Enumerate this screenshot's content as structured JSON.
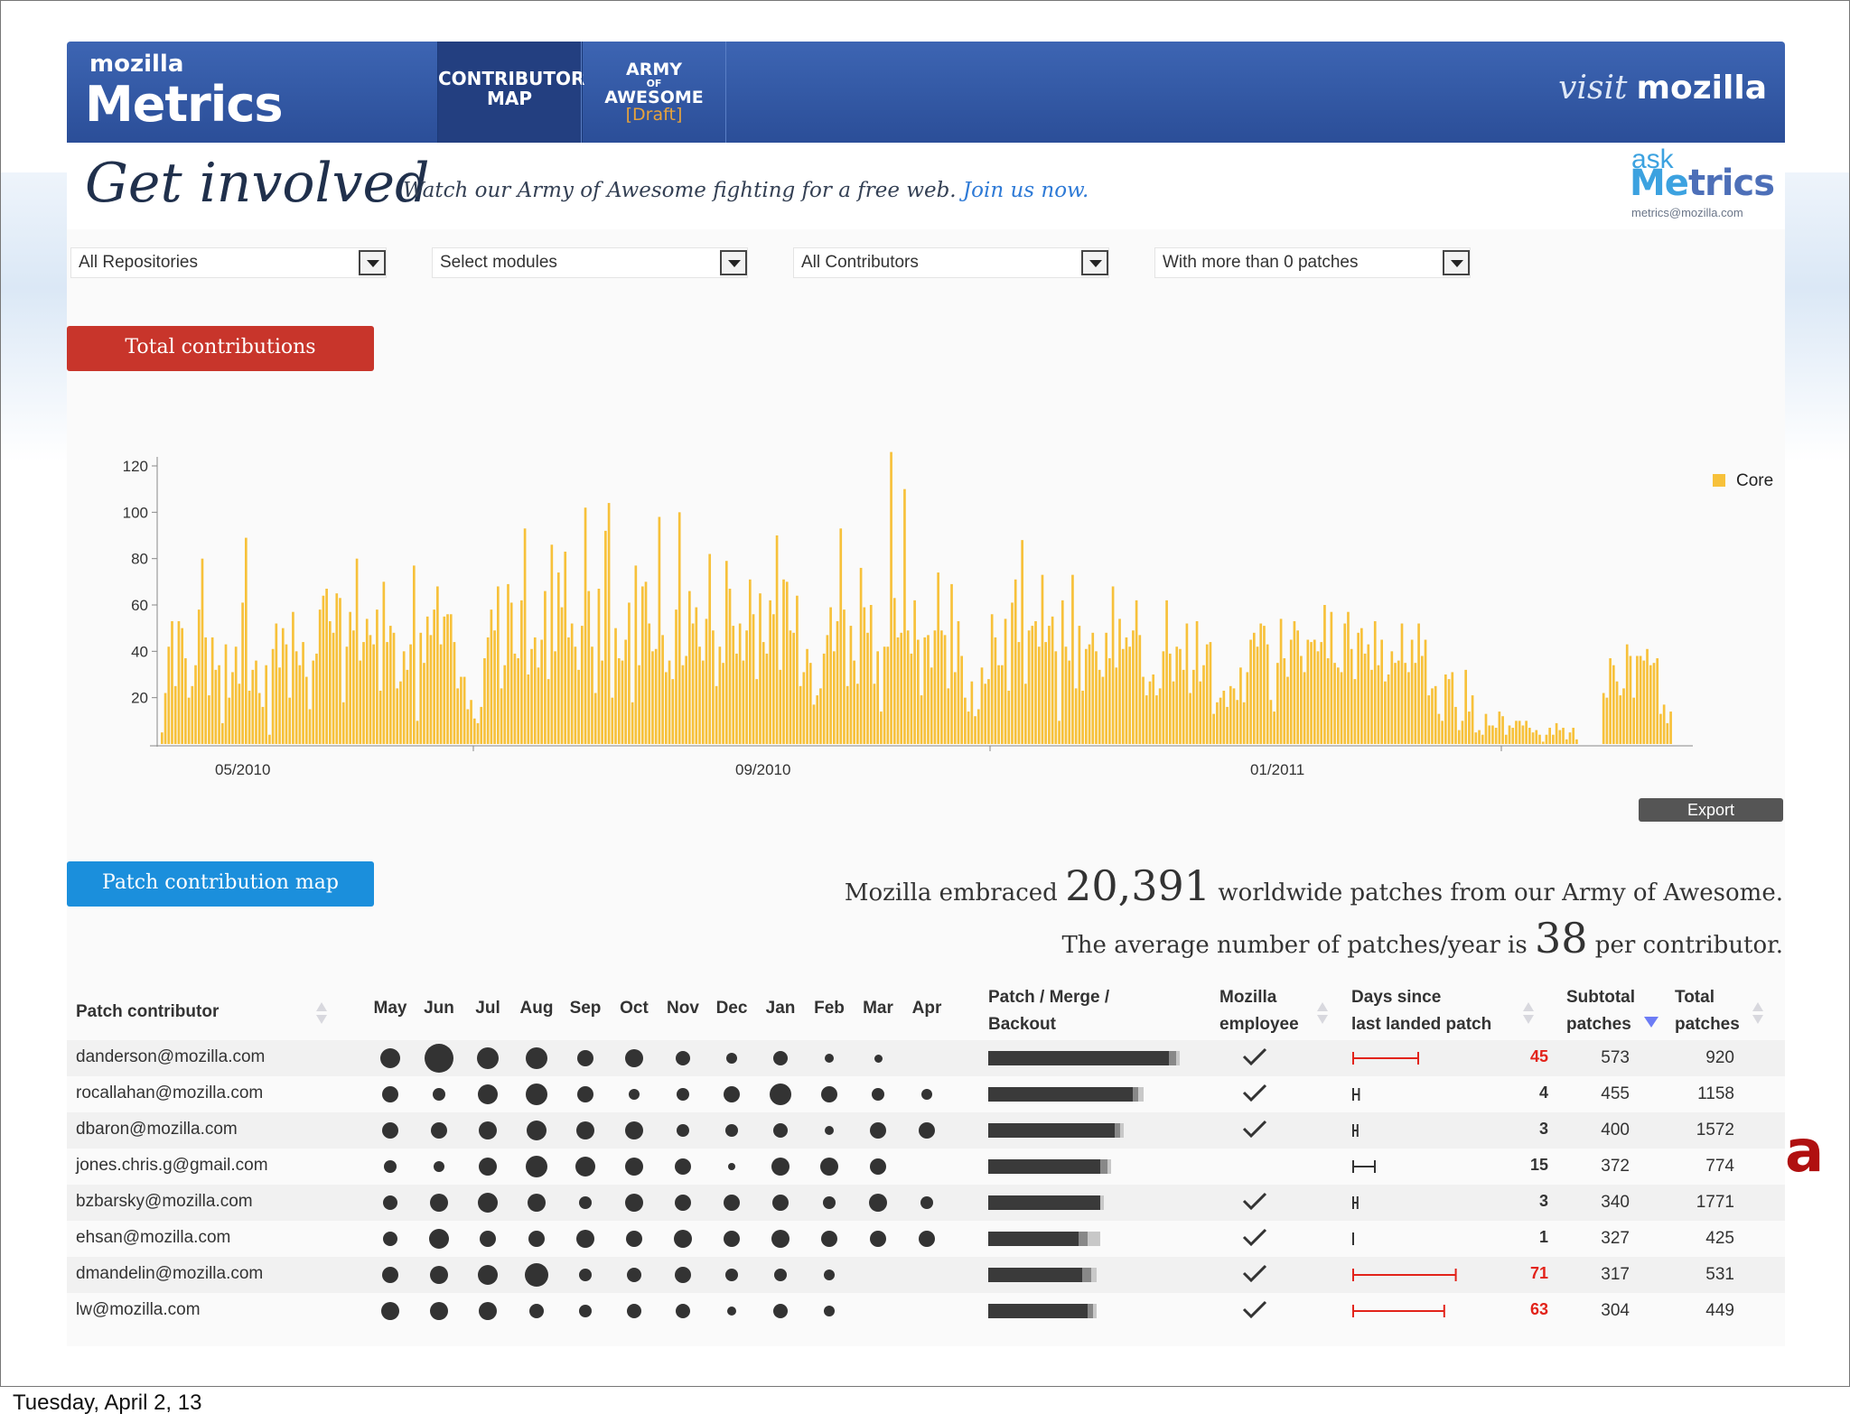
{
  "header": {
    "logo_top": "mozilla",
    "logo_main": "Metrics",
    "nav": [
      {
        "line1": "CONTRIBUTOR",
        "line2": "MAP"
      },
      {
        "line1": "ARMY",
        "line2": "OF",
        "line3": "AWESOME",
        "line4": "[Draft]"
      }
    ],
    "visit_italic": "visit",
    "visit_brand": "mozilla"
  },
  "intro": {
    "title": "Get involved",
    "subtitle": "Watch our Army of Awesome fighting for a free web.",
    "join": "Join us now.",
    "ask_top": "ask",
    "ask_main_a": "Me",
    "ask_main_b": "trics",
    "ask_email": "metrics@mozilla.com"
  },
  "filters": [
    {
      "value": "All Repositories"
    },
    {
      "value": "Select modules"
    },
    {
      "value": "All Contributors"
    },
    {
      "value": "With more than 0 patches"
    }
  ],
  "tabs": {
    "total": "Total contributions",
    "patch": "Patch contribution map"
  },
  "export_label": "Export",
  "chart_data": {
    "type": "bar",
    "series": [
      {
        "name": "Core",
        "color": "#f7c13a"
      }
    ],
    "y_ticks": [
      "20",
      "40",
      "60",
      "80",
      "100",
      "120"
    ],
    "ylim": [
      0,
      130
    ],
    "x_ticks": [
      "05/2010",
      "09/2010",
      "01/2011"
    ],
    "values": [
      5,
      22,
      42,
      53,
      25,
      53,
      50,
      37,
      20,
      25,
      34,
      58,
      80,
      46,
      21,
      46,
      32,
      34,
      9,
      43,
      20,
      31,
      42,
      26,
      61,
      89,
      23,
      32,
      36,
      22,
      16,
      34,
      4,
      41,
      52,
      33,
      50,
      43,
      20,
      57,
      40,
      34,
      44,
      29,
      15,
      36,
      39,
      58,
      64,
      67,
      53,
      48,
      65,
      63,
      18,
      42,
      57,
      49,
      80,
      36,
      44,
      54,
      47,
      43,
      58,
      23,
      70,
      44,
      51,
      48,
      24,
      27,
      40,
      32,
      43,
      77,
      10,
      48,
      35,
      55,
      47,
      58,
      68,
      43,
      55,
      56,
      56,
      44,
      24,
      29,
      29,
      15,
      19,
      11,
      9,
      16,
      37,
      46,
      58,
      49,
      68,
      24,
      34,
      69,
      61,
      39,
      37,
      62,
      93,
      30,
      41,
      46,
      33,
      45,
      66,
      28,
      86,
      40,
      74,
      59,
      83,
      46,
      52,
      42,
      32,
      51,
      102,
      66,
      42,
      22,
      67,
      36,
      92,
      104,
      20,
      50,
      37,
      36,
      45,
      61,
      18,
      77,
      34,
      68,
      70,
      52,
      40,
      41,
      98,
      47,
      31,
      36,
      28,
      58,
      100,
      34,
      38,
      66,
      52,
      59,
      42,
      36,
      54,
      82,
      49,
      25,
      42,
      35,
      79,
      67,
      51,
      39,
      52,
      36,
      49,
      71,
      56,
      28,
      65,
      44,
      39,
      62,
      56,
      90,
      32,
      71,
      70,
      49,
      48,
      64,
      25,
      31,
      41,
      35,
      17,
      21,
      24,
      39,
      47,
      59,
      40,
      53,
      93,
      58,
      25,
      51,
      36,
      26,
      76,
      59,
      48,
      60,
      26,
      40,
      14,
      42,
      42,
      126,
      63,
      46,
      48,
      110,
      49,
      39,
      62,
      45,
      21,
      46,
      47,
      33,
      49,
      74,
      49,
      47,
      24,
      69,
      31,
      53,
      38,
      20,
      14,
      27,
      12,
      15,
      33,
      26,
      28,
      56,
      46,
      34,
      34,
      54,
      23,
      61,
      71,
      44,
      88,
      26,
      49,
      51,
      53,
      42,
      73,
      44,
      51,
      55,
      40,
      10,
      62,
      42,
      36,
      73,
      24,
      51,
      23,
      41,
      43,
      48,
      40,
      32,
      29,
      48,
      37,
      68,
      33,
      54,
      41,
      46,
      42,
      49,
      62,
      47,
      29,
      21,
      27,
      30,
      21,
      24,
      40,
      62,
      39,
      27,
      42,
      41,
      32,
      52,
      22,
      32,
      53,
      27,
      34,
      43,
      44,
      13,
      18,
      20,
      23,
      16,
      25,
      24,
      19,
      33,
      18,
      31,
      45,
      48,
      42,
      52,
      51,
      43,
      19,
      14,
      35,
      54,
      37,
      29,
      45,
      53,
      49,
      38,
      31,
      45,
      44,
      45,
      40,
      44,
      60,
      37,
      57,
      35,
      33,
      31,
      52,
      57,
      41,
      28,
      48,
      50,
      39,
      43,
      32,
      53,
      34,
      45,
      27,
      30,
      40,
      35,
      36,
      52,
      35,
      31,
      45,
      35,
      52,
      38,
      45,
      21,
      24,
      25,
      13,
      10,
      30,
      28,
      31,
      16,
      6,
      10,
      32,
      14,
      21,
      5,
      6,
      4,
      13,
      8,
      8,
      7,
      14,
      12,
      4,
      8,
      7,
      10,
      10,
      8,
      10,
      7,
      5,
      6,
      4,
      1,
      4,
      7,
      4,
      9,
      6,
      7,
      2,
      5,
      7,
      2,
      0,
      0,
      0,
      0,
      0,
      0,
      0,
      22,
      20,
      37,
      34,
      27,
      21,
      24,
      43,
      38,
      20,
      38,
      38,
      36,
      41,
      34,
      35,
      37,
      13,
      17,
      9,
      14,
      0,
      0,
      0,
      0,
      0,
      0,
      0
    ]
  },
  "summary": {
    "line1_a": "Mozilla embraced",
    "line1_num": "20,391",
    "line1_b": "worldwide patches from our Army of Awesome.",
    "line2_a": "The average number of patches/year is",
    "line2_num": "38",
    "line2_b": "per contributor."
  },
  "table": {
    "headers": {
      "contributor": "Patch contributor",
      "months": [
        "May",
        "Jun",
        "Jul",
        "Aug",
        "Sep",
        "Oct",
        "Nov",
        "Dec",
        "Jan",
        "Feb",
        "Mar",
        "Apr"
      ],
      "pmb_1": "Patch / Merge /",
      "pmb_2": "Backout",
      "emp_1": "Mozilla",
      "emp_2": "employee",
      "days_1": "Days since",
      "days_2": "last landed patch",
      "sub_1": "Subtotal",
      "sub_2": "patches",
      "tot_1": "Total",
      "tot_2": "patches"
    },
    "rows": [
      {
        "email": "danderson@mozilla.com",
        "dots": [
          22,
          32,
          24,
          24,
          18,
          20,
          16,
          12,
          16,
          10,
          9,
          0
        ],
        "bar": [
          200,
          8,
          4
        ],
        "employee": true,
        "days": "45",
        "red": true,
        "sub": "573",
        "total": "920"
      },
      {
        "email": "rocallahan@mozilla.com",
        "dots": [
          18,
          14,
          22,
          24,
          18,
          12,
          14,
          18,
          24,
          18,
          14,
          12
        ],
        "bar": [
          160,
          6,
          6
        ],
        "employee": true,
        "days": "4",
        "red": false,
        "sub": "455",
        "total": "1158"
      },
      {
        "email": "dbaron@mozilla.com",
        "dots": [
          18,
          18,
          20,
          22,
          20,
          20,
          14,
          14,
          16,
          10,
          18,
          18
        ],
        "bar": [
          140,
          6,
          4
        ],
        "employee": true,
        "days": "3",
        "red": false,
        "sub": "400",
        "total": "1572"
      },
      {
        "email": "jones.chris.g@gmail.com",
        "dots": [
          14,
          12,
          20,
          24,
          22,
          20,
          18,
          8,
          20,
          20,
          18,
          0
        ],
        "bar": [
          124,
          8,
          4
        ],
        "employee": false,
        "days": "15",
        "red": false,
        "sub": "372",
        "total": "774"
      },
      {
        "email": "bzbarsky@mozilla.com",
        "dots": [
          16,
          20,
          22,
          20,
          14,
          20,
          18,
          18,
          18,
          14,
          20,
          14
        ],
        "bar": [
          124,
          0,
          4
        ],
        "employee": true,
        "days": "3",
        "red": false,
        "sub": "340",
        "total": "1771"
      },
      {
        "email": "ehsan@mozilla.com",
        "dots": [
          16,
          22,
          18,
          18,
          20,
          18,
          20,
          18,
          20,
          18,
          18,
          18
        ],
        "bar": [
          100,
          10,
          14
        ],
        "employee": true,
        "days": "1",
        "red": false,
        "sub": "327",
        "total": "425"
      },
      {
        "email": "dmandelin@mozilla.com",
        "dots": [
          18,
          20,
          22,
          26,
          14,
          16,
          18,
          14,
          14,
          12,
          0,
          0
        ],
        "bar": [
          104,
          10,
          6
        ],
        "employee": true,
        "days": "71",
        "red": true,
        "sub": "317",
        "total": "531"
      },
      {
        "email": "lw@mozilla.com",
        "dots": [
          20,
          20,
          20,
          16,
          14,
          16,
          16,
          10,
          16,
          12,
          0,
          0
        ],
        "bar": [
          110,
          6,
          4
        ],
        "employee": true,
        "days": "63",
        "red": true,
        "sub": "304",
        "total": "449"
      }
    ]
  },
  "footer_date": "Tuesday, April 2, 13",
  "slide_marker": "a"
}
